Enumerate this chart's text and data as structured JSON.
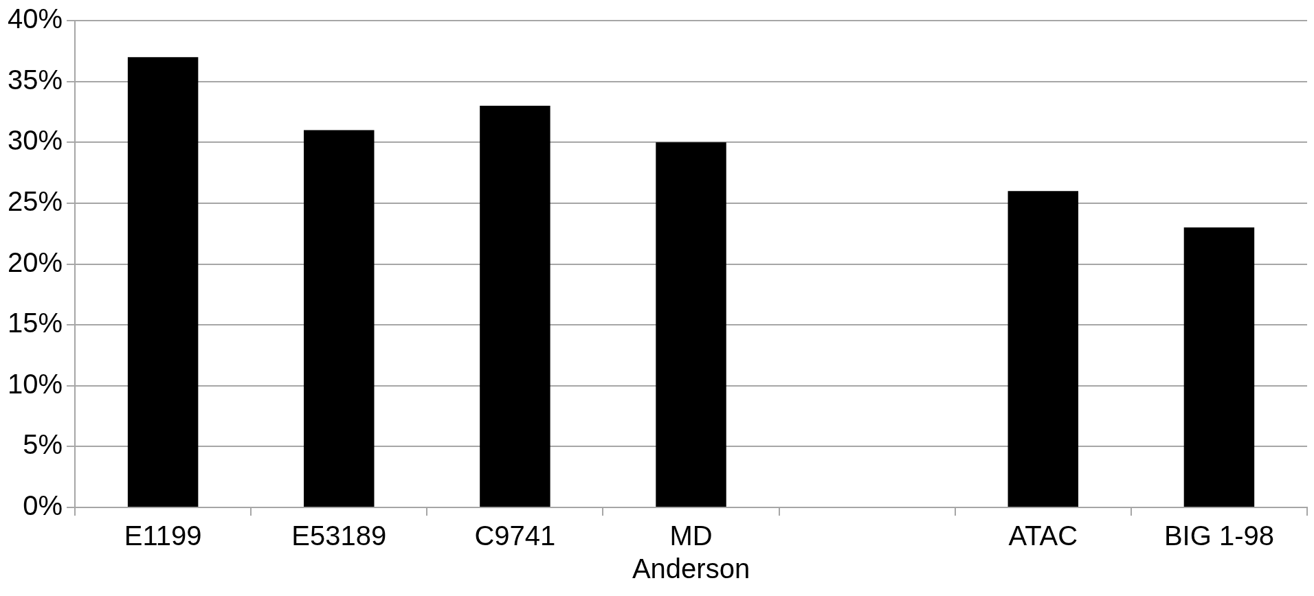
{
  "chart_data": {
    "type": "bar",
    "categories": [
      "E1199",
      "E53189",
      "C9741",
      "MD Anderson",
      null,
      "ATAC",
      "BIG 1-98"
    ],
    "values": [
      37,
      31,
      33,
      30,
      null,
      26,
      23
    ],
    "color": "#000000",
    "ylim": [
      0,
      40
    ],
    "yticks": [
      {
        "value": 0,
        "label": "0%"
      },
      {
        "value": 5,
        "label": "5%"
      },
      {
        "value": 10,
        "label": "10%"
      },
      {
        "value": 15,
        "label": "15%"
      },
      {
        "value": 20,
        "label": "20%"
      },
      {
        "value": 25,
        "label": "25%"
      },
      {
        "value": 30,
        "label": "30%"
      },
      {
        "value": 35,
        "label": "35%"
      },
      {
        "value": 40,
        "label": "40%"
      }
    ],
    "grid": "y",
    "legend": false
  }
}
